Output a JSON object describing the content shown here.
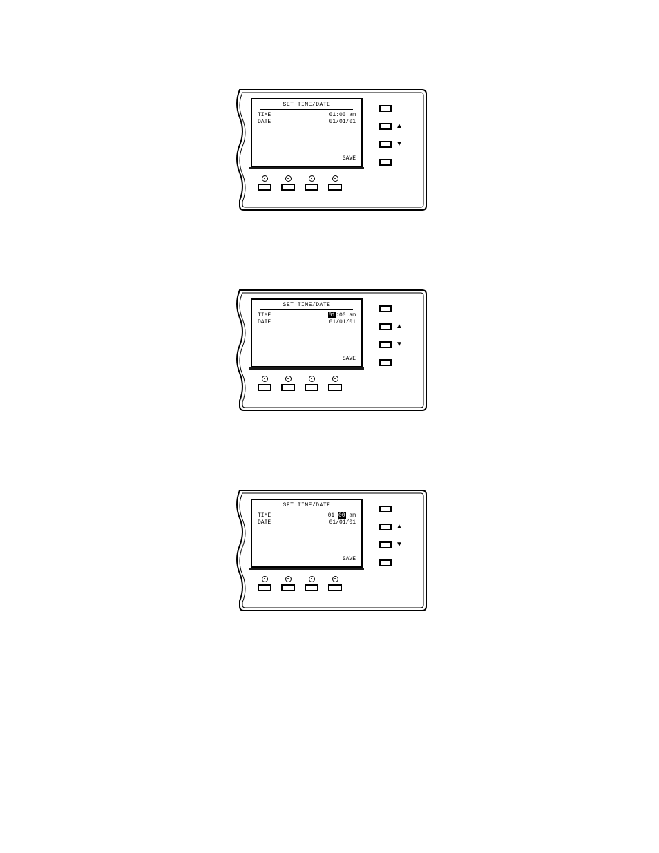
{
  "colors": {
    "stroke": "#000000",
    "background": "#ffffff"
  },
  "arrows": {
    "up": "▲",
    "down": "▼"
  },
  "panels": [
    {
      "title": "SET TIME/DATE",
      "time_label": "TIME",
      "date_label": "DATE",
      "time_value_pre": "",
      "time_value_hl": "",
      "time_value_post": "01:00 am",
      "date_value": "01/01/01",
      "save_label": "SAVE"
    },
    {
      "title": "SET TIME/DATE",
      "time_label": "TIME",
      "date_label": "DATE",
      "time_value_pre": "",
      "time_value_hl": "01",
      "time_value_post": ":00 am",
      "date_value": "01/01/01",
      "save_label": "SAVE"
    },
    {
      "title": "SET TIME/DATE",
      "time_label": "TIME",
      "date_label": "DATE",
      "time_value_pre": "01:",
      "time_value_hl": "00",
      "time_value_post": " am",
      "date_value": "01/01/01",
      "save_label": "SAVE"
    }
  ]
}
